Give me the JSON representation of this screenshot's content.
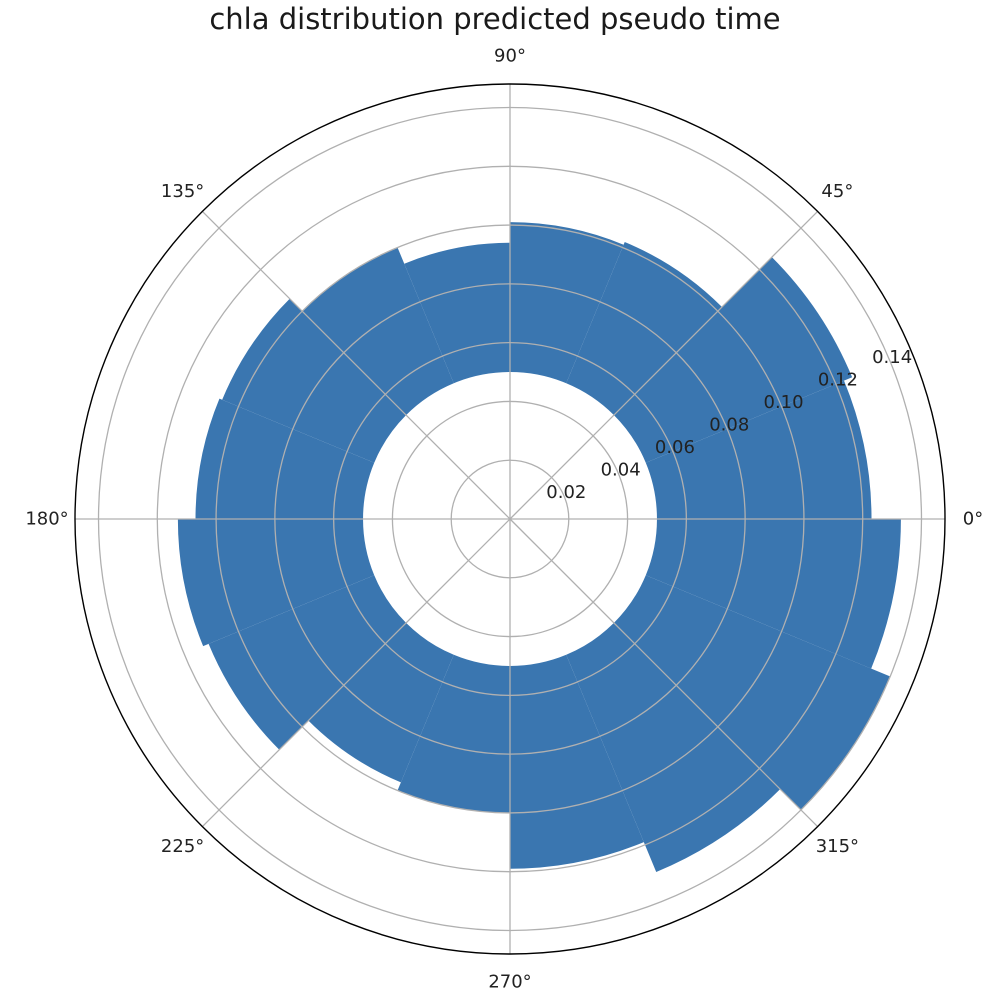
{
  "chart_data": {
    "type": "bar",
    "projection": "polar",
    "title": "chla distribution predicted pseudo time",
    "bar_color": "#3a76b0",
    "grid": true,
    "theta_zero_location": "east",
    "theta_direction": "counterclockwise",
    "theta_ticks": [
      "0°",
      "45°",
      "90°",
      "135°",
      "180°",
      "225°",
      "270°",
      "315°"
    ],
    "theta_tick_degrees": [
      0,
      45,
      90,
      135,
      180,
      225,
      270,
      315
    ],
    "r_ticks": [
      "0.02",
      "0.04",
      "0.06",
      "0.08",
      "0.10",
      "0.12",
      "0.14"
    ],
    "r_tick_values": [
      0.02,
      0.04,
      0.06,
      0.08,
      0.1,
      0.12,
      0.14
    ],
    "rlim": [
      0,
      0.148
    ],
    "bar_bottom": 0.05,
    "bin_width_degrees": 22.5,
    "bins": [
      {
        "start_deg": 0,
        "end_deg": 22.5,
        "value": 0.123
      },
      {
        "start_deg": 22.5,
        "end_deg": 45,
        "value": 0.126
      },
      {
        "start_deg": 45,
        "end_deg": 67.5,
        "value": 0.102
      },
      {
        "start_deg": 67.5,
        "end_deg": 90,
        "value": 0.101
      },
      {
        "start_deg": 90,
        "end_deg": 112.5,
        "value": 0.094
      },
      {
        "start_deg": 112.5,
        "end_deg": 135,
        "value": 0.1
      },
      {
        "start_deg": 135,
        "end_deg": 157.5,
        "value": 0.106
      },
      {
        "start_deg": 157.5,
        "end_deg": 180,
        "value": 0.107
      },
      {
        "start_deg": 180,
        "end_deg": 202.5,
        "value": 0.113
      },
      {
        "start_deg": 202.5,
        "end_deg": 225,
        "value": 0.111
      },
      {
        "start_deg": 225,
        "end_deg": 247.5,
        "value": 0.097
      },
      {
        "start_deg": 247.5,
        "end_deg": 270,
        "value": 0.1
      },
      {
        "start_deg": 270,
        "end_deg": 292.5,
        "value": 0.119
      },
      {
        "start_deg": 292.5,
        "end_deg": 315,
        "value": 0.13
      },
      {
        "start_deg": 315,
        "end_deg": 337.5,
        "value": 0.14
      },
      {
        "start_deg": 337.5,
        "end_deg": 360,
        "value": 0.133
      }
    ]
  }
}
